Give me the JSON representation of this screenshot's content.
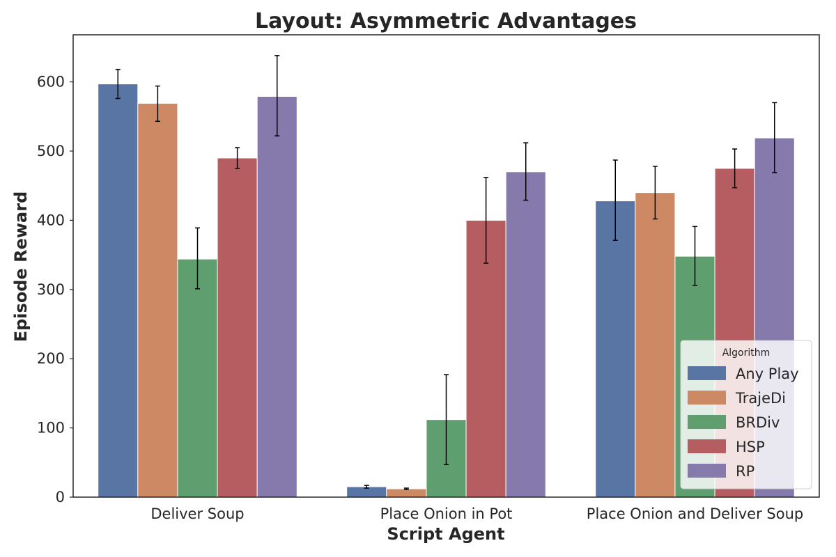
{
  "chart_data": {
    "type": "bar",
    "title": "Layout: Asymmetric Advantages",
    "xlabel": "Script Agent",
    "ylabel": "Episode Reward",
    "categories": [
      "Deliver Soup",
      "Place Onion in Pot",
      "Place Onion and Deliver Soup"
    ],
    "ylim": [
      0,
      668
    ],
    "yticks": [
      0,
      100,
      200,
      300,
      400,
      500,
      600
    ],
    "grid": false,
    "legend": {
      "title": "Algorithm",
      "placement": "lower-right"
    },
    "series": [
      {
        "name": "Any Play",
        "color": "#5875a4",
        "values": [
          597,
          15,
          428
        ],
        "err_low": [
          576,
          13,
          371
        ],
        "err_high": [
          618,
          17,
          487
        ]
      },
      {
        "name": "TrajeDi",
        "color": "#cc8963",
        "values": [
          569,
          12,
          440
        ],
        "err_low": [
          543,
          11,
          402
        ],
        "err_high": [
          594,
          13,
          478
        ]
      },
      {
        "name": "BRDiv",
        "color": "#5f9e6e",
        "values": [
          344,
          112,
          348
        ],
        "err_low": [
          301,
          47,
          306
        ],
        "err_high": [
          389,
          177,
          391
        ]
      },
      {
        "name": "HSP",
        "color": "#b55d60",
        "values": [
          490,
          400,
          475
        ],
        "err_low": [
          475,
          338,
          447
        ],
        "err_high": [
          505,
          462,
          503
        ]
      },
      {
        "name": "RP",
        "color": "#857aab",
        "values": [
          579,
          470,
          519
        ],
        "err_low": [
          522,
          429,
          469
        ],
        "err_high": [
          638,
          512,
          570
        ]
      }
    ]
  }
}
